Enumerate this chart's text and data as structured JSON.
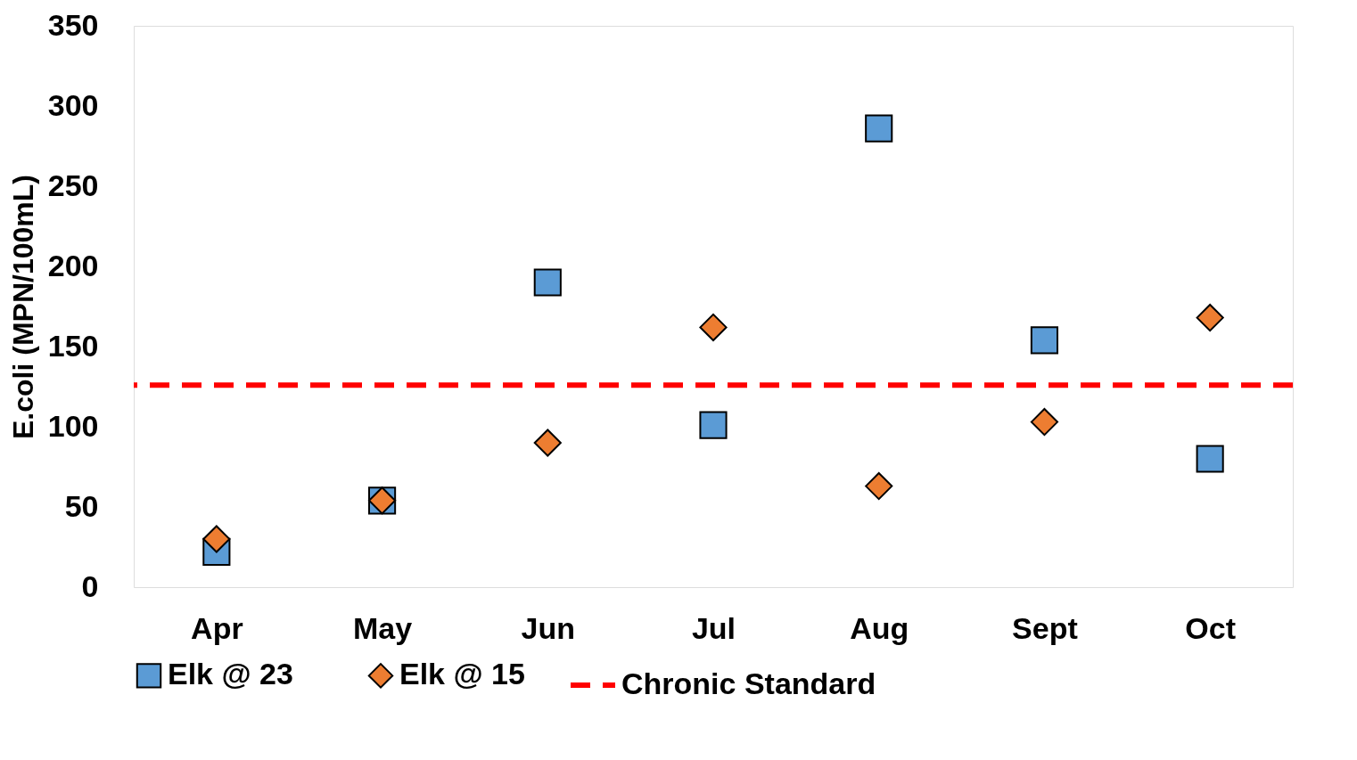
{
  "chart_data": {
    "type": "scatter",
    "ylabel": "E.coli (MPN/100mL)",
    "categories": [
      "Apr",
      "May",
      "Jun",
      "Jul",
      "Aug",
      "Sept",
      "Oct"
    ],
    "series": [
      {
        "name": "Elk @ 23",
        "color": "#5b9bd5",
        "marker": "square",
        "values": [
          22,
          54,
          190,
          101,
          286,
          154,
          80
        ]
      },
      {
        "name": "Elk @ 15",
        "color": "#ed7d31",
        "marker": "diamond",
        "values": [
          30,
          54,
          90,
          162,
          63,
          103,
          168
        ]
      }
    ],
    "ref_lines": [
      {
        "axis": "y",
        "value": 126,
        "label": "Chronic Standard",
        "color": "#ff0000",
        "line_style": "dashed"
      }
    ],
    "ylim": [
      0,
      350
    ],
    "yticks": [
      0,
      50,
      100,
      150,
      200,
      250,
      300,
      350
    ],
    "grid": false,
    "legend": "bottom"
  }
}
